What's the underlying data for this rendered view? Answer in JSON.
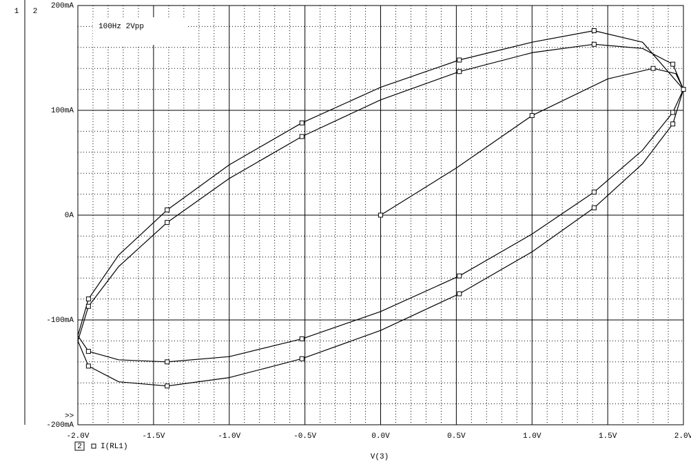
{
  "chart_data": {
    "type": "line",
    "annotation": "100Hz 2Vpp",
    "plot_numbers": [
      "1",
      "2"
    ],
    "legend_index": "2",
    "overflow_marker": ">>",
    "xlabel": "V(3)",
    "xlim": [
      -2,
      2
    ],
    "ylim": [
      -200,
      200
    ],
    "xticks": [
      {
        "value": -2,
        "label": "-2.0V"
      },
      {
        "value": -1.5,
        "label": "-1.5V"
      },
      {
        "value": -1,
        "label": "-1.0V"
      },
      {
        "value": -0.5,
        "label": "-0.5V"
      },
      {
        "value": 0,
        "label": "0.0V"
      },
      {
        "value": 0.5,
        "label": "0.5V"
      },
      {
        "value": 1,
        "label": "1.0V"
      },
      {
        "value": 1.5,
        "label": "1.5V"
      },
      {
        "value": 2,
        "label": "2.0V"
      }
    ],
    "yticks": [
      {
        "value": -200,
        "label": "-200mA"
      },
      {
        "value": -100,
        "label": "-100mA"
      },
      {
        "value": 0,
        "label": "0A"
      },
      {
        "value": 100,
        "label": "100mA"
      },
      {
        "value": 200,
        "label": "200mA"
      }
    ],
    "grid": true,
    "minor_grid": true,
    "x": [
      0,
      0.5,
      1.0,
      1.5,
      1.8,
      1.95,
      2.0,
      1.73,
      1.41,
      1.0,
      0.52,
      0,
      -0.52,
      -1.0,
      -1.41,
      -1.73,
      -1.93,
      -2.0,
      -1.93,
      -1.73,
      -1.41,
      -1.0,
      -0.52,
      0,
      0.52,
      1.0,
      1.41,
      1.73,
      1.93,
      2.0,
      1.93,
      1.73,
      1.41,
      1.0,
      0.52,
      0,
      -0.52,
      -1.0,
      -1.41,
      -1.73,
      -1.93,
      -2.0,
      -1.93,
      -1.73,
      -1.41,
      -1.0,
      -0.52,
      0,
      0.52,
      1.0,
      1.41,
      1.73,
      1.93,
      2.0
    ],
    "series": [
      {
        "name": "I(RL1)",
        "color": "#000000",
        "values": [
          0,
          45,
          95,
          130,
          140,
          135,
          120,
          165,
          176,
          165,
          148,
          122,
          88,
          48,
          5,
          -38,
          -80,
          -115,
          -130,
          -138,
          -140,
          -135,
          -118,
          -92,
          -58,
          -18,
          22,
          62,
          98,
          120,
          144,
          159,
          163,
          155,
          137,
          110,
          75,
          35,
          -7,
          -49,
          -87,
          -120,
          -144,
          -159,
          -163,
          -155,
          -137,
          -110,
          -75,
          -35,
          7,
          49,
          87,
          120
        ]
      }
    ]
  }
}
